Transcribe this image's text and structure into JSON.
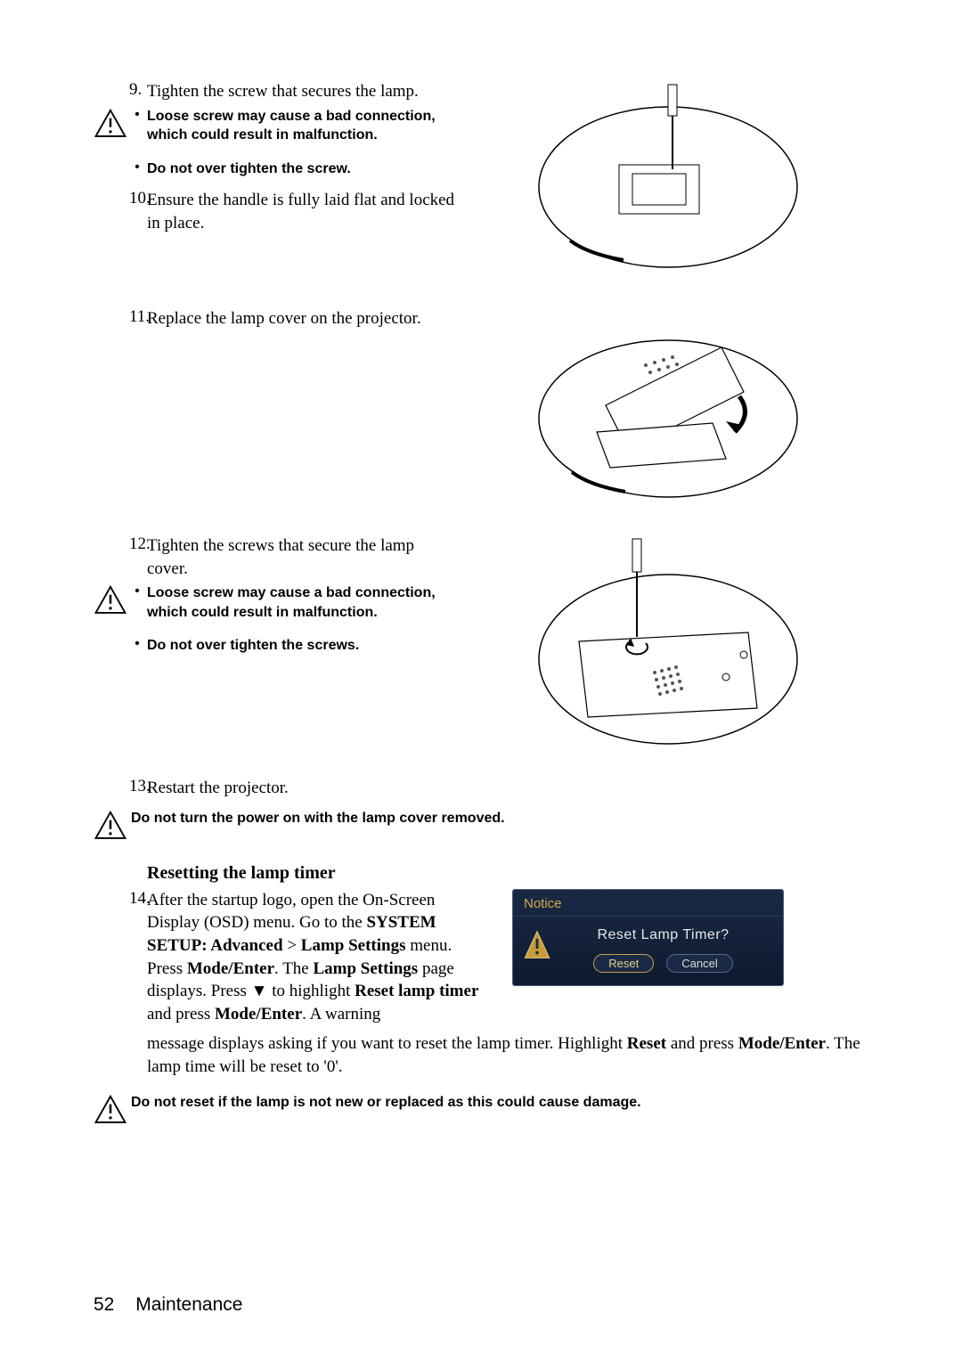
{
  "steps": {
    "s9": {
      "num": "9.",
      "text": "Tighten the screw that secures the lamp."
    },
    "s10": {
      "num": "10.",
      "text": "Ensure the handle is fully laid flat and locked in place."
    },
    "s11": {
      "num": "11.",
      "text": "Replace the lamp cover on the projector."
    },
    "s12": {
      "num": "12.",
      "text": "Tighten the screws that secure the lamp cover."
    },
    "s13": {
      "num": "13.",
      "text": "Restart the projector."
    },
    "s14": {
      "num": "14.",
      "pre": "After the startup logo, open the On-Screen Display (OSD) menu. Go to the ",
      "b1": "SYSTEM SETUP: Advanced",
      "gt": " > ",
      "b2": "Lamp Settings",
      "mid1": " menu. Press ",
      "b3": "Mode/Enter",
      "mid2": ". The ",
      "b4": "Lamp Settings",
      "mid3": " page displays. Press ▼ to highlight ",
      "b5": "Reset lamp timer",
      "mid4": " and press ",
      "b6": "Mode/Enter",
      "mid5": ". A warning message displays asking if you want to reset the lamp timer. Highlight ",
      "b7": "Reset",
      "mid6": " and press ",
      "b8": "Mode/Enter",
      "post": ". The lamp time will be reset to '0'."
    }
  },
  "warnings": {
    "w1a": "Loose screw may cause a bad connection, which could result in malfunction.",
    "w1b": "Do not over tighten the screw.",
    "w2a": "Loose screw may cause a bad connection, which could result in malfunction.",
    "w2b": "Do not over tighten the screws.",
    "w3": "Do not turn the power on with the lamp cover removed.",
    "w4": "Do not reset if the lamp is not new or replaced as this could cause damage."
  },
  "heading": "Resetting the lamp timer",
  "notice": {
    "title": "Notice",
    "question": "Reset Lamp Timer?",
    "reset": "Reset",
    "cancel": "Cancel"
  },
  "footer": {
    "page": "52",
    "section": "Maintenance"
  },
  "bullet": "•"
}
